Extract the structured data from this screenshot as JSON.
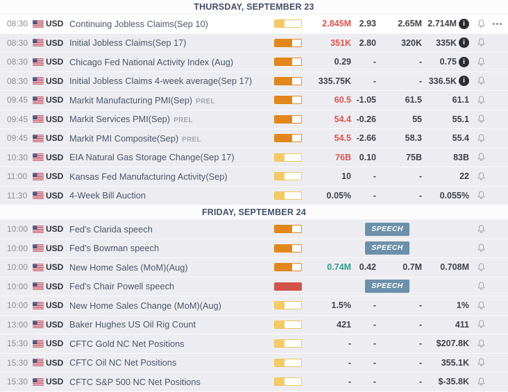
{
  "colors": {
    "actual_red": "#d9544d",
    "actual_green": "#35998e",
    "value_default": "#3f404a",
    "speech_badge_bg": "#6b90a9",
    "row_bg": "#ededf1",
    "highlight_row_bg": "#ffffff"
  },
  "volatility_levels": {
    "yellow": {
      "border": "#efc35e",
      "fill": "#f4ca67",
      "fill_pct": 36
    },
    "orange": {
      "border": "#df861c",
      "fill": "#e2871b",
      "fill_pct": 66
    },
    "red": {
      "border": "#cf5348",
      "fill": "#cf5348",
      "fill_pct": 100
    }
  },
  "badges": {
    "speech": "SPEECH"
  },
  "icons": {
    "info": "info-circle-icon",
    "bell": "alert-bell-icon",
    "menu": "ellipsis-menu-icon",
    "flag": "us-flag-icon"
  },
  "sections": [
    {
      "title": "THURSDAY, SEPTEMBER 23",
      "rows": [
        {
          "time": "08:30",
          "currency": "USD",
          "event": "Continuing Jobless Claims(Sep 10)",
          "suffix": "",
          "volatility": "yellow",
          "speech": false,
          "actual": "2.845M",
          "actual_color": "red",
          "deviation": "2.93",
          "consensus": "2.65M",
          "previous": "2.714M",
          "has_info": true,
          "has_menu": true,
          "highlighted": true
        },
        {
          "time": "08:30",
          "currency": "USD",
          "event": "Initial Jobless Claims(Sep 17)",
          "suffix": "",
          "volatility": "orange",
          "speech": false,
          "actual": "351K",
          "actual_color": "red",
          "deviation": "2.80",
          "consensus": "320K",
          "previous": "335K",
          "has_info": true,
          "has_menu": false,
          "highlighted": false
        },
        {
          "time": "08:30",
          "currency": "USD",
          "event": "Chicago Fed National Activity Index (Aug)",
          "suffix": "",
          "volatility": "orange",
          "speech": false,
          "actual": "0.29",
          "actual_color": "",
          "deviation": "-",
          "consensus": "-",
          "previous": "0.75",
          "has_info": true,
          "has_menu": false,
          "highlighted": false
        },
        {
          "time": "08:30",
          "currency": "USD",
          "event": "Initial Jobless Claims 4-week average(Sep 17)",
          "suffix": "",
          "volatility": "orange",
          "speech": false,
          "actual": "335.75K",
          "actual_color": "",
          "deviation": "-",
          "consensus": "-",
          "previous": "336.5K",
          "has_info": true,
          "has_menu": false,
          "highlighted": false
        },
        {
          "time": "09:45",
          "currency": "USD",
          "event": "Markit Manufacturing PMI(Sep)",
          "suffix": "PREL",
          "volatility": "orange",
          "speech": false,
          "actual": "60.5",
          "actual_color": "red",
          "deviation": "-1.05",
          "consensus": "61.5",
          "previous": "61.1",
          "has_info": false,
          "has_menu": false,
          "highlighted": false
        },
        {
          "time": "09:45",
          "currency": "USD",
          "event": "Markit Services PMI(Sep)",
          "suffix": "PREL",
          "volatility": "orange",
          "speech": false,
          "actual": "54.4",
          "actual_color": "red",
          "deviation": "-0.26",
          "consensus": "55",
          "previous": "55.1",
          "has_info": false,
          "has_menu": false,
          "highlighted": false
        },
        {
          "time": "09:45",
          "currency": "USD",
          "event": "Markit PMI Composite(Sep)",
          "suffix": "PREL",
          "volatility": "orange",
          "speech": false,
          "actual": "54.5",
          "actual_color": "red",
          "deviation": "-2.66",
          "consensus": "58.3",
          "previous": "55.4",
          "has_info": false,
          "has_menu": false,
          "highlighted": false
        },
        {
          "time": "10:30",
          "currency": "USD",
          "event": "EIA Natural Gas Storage Change(Sep 17)",
          "suffix": "",
          "volatility": "yellow",
          "speech": false,
          "actual": "76B",
          "actual_color": "red",
          "deviation": "0.10",
          "consensus": "75B",
          "previous": "83B",
          "has_info": false,
          "has_menu": false,
          "highlighted": false
        },
        {
          "time": "11:00",
          "currency": "USD",
          "event": "Kansas Fed Manufacturing Activity(Sep)",
          "suffix": "",
          "volatility": "yellow",
          "speech": false,
          "actual": "10",
          "actual_color": "",
          "deviation": "-",
          "consensus": "-",
          "previous": "22",
          "has_info": false,
          "has_menu": false,
          "highlighted": false
        },
        {
          "time": "11:30",
          "currency": "USD",
          "event": "4-Week Bill Auction",
          "suffix": "",
          "volatility": "yellow",
          "speech": false,
          "actual": "0.05%",
          "actual_color": "",
          "deviation": "-",
          "consensus": "-",
          "previous": "0.055%",
          "has_info": false,
          "has_menu": false,
          "highlighted": false
        }
      ]
    },
    {
      "title": "FRIDAY, SEPTEMBER 24",
      "rows": [
        {
          "time": "10:00",
          "currency": "USD",
          "event": "Fed's Clarida speech",
          "suffix": "",
          "volatility": "orange",
          "speech": true,
          "actual": "",
          "actual_color": "",
          "deviation": "",
          "consensus": "",
          "previous": "",
          "has_info": false,
          "has_menu": false,
          "highlighted": false
        },
        {
          "time": "10:00",
          "currency": "USD",
          "event": "Fed's Bowman speech",
          "suffix": "",
          "volatility": "orange",
          "speech": true,
          "actual": "",
          "actual_color": "",
          "deviation": "",
          "consensus": "",
          "previous": "",
          "has_info": false,
          "has_menu": false,
          "highlighted": false
        },
        {
          "time": "10:00",
          "currency": "USD",
          "event": "New Home Sales (MoM)(Aug)",
          "suffix": "",
          "volatility": "orange",
          "speech": false,
          "actual": "0.74M",
          "actual_color": "green",
          "deviation": "0.42",
          "consensus": "0.7M",
          "previous": "0.708M",
          "has_info": false,
          "has_menu": false,
          "highlighted": false
        },
        {
          "time": "10:00",
          "currency": "USD",
          "event": "Fed's Chair Powell speech",
          "suffix": "",
          "volatility": "red",
          "speech": true,
          "actual": "",
          "actual_color": "",
          "deviation": "",
          "consensus": "",
          "previous": "",
          "has_info": false,
          "has_menu": false,
          "highlighted": false
        },
        {
          "time": "10:00",
          "currency": "USD",
          "event": "New Home Sales Change (MoM)(Aug)",
          "suffix": "",
          "volatility": "yellow",
          "speech": false,
          "actual": "1.5%",
          "actual_color": "",
          "deviation": "-",
          "consensus": "-",
          "previous": "1%",
          "has_info": false,
          "has_menu": false,
          "highlighted": false
        },
        {
          "time": "13:00",
          "currency": "USD",
          "event": "Baker Hughes US Oil Rig Count",
          "suffix": "",
          "volatility": "yellow",
          "speech": false,
          "actual": "421",
          "actual_color": "",
          "deviation": "-",
          "consensus": "-",
          "previous": "411",
          "has_info": false,
          "has_menu": false,
          "highlighted": false
        },
        {
          "time": "15:30",
          "currency": "USD",
          "event": "CFTC Gold NC Net Positions",
          "suffix": "",
          "volatility": "yellow",
          "speech": false,
          "actual": "-",
          "actual_color": "",
          "deviation": "-",
          "consensus": "-",
          "previous": "$207.8K",
          "has_info": false,
          "has_menu": false,
          "highlighted": false
        },
        {
          "time": "15:30",
          "currency": "USD",
          "event": "CFTC Oil NC Net Positions",
          "suffix": "",
          "volatility": "yellow",
          "speech": false,
          "actual": "-",
          "actual_color": "",
          "deviation": "-",
          "consensus": "-",
          "previous": "355.1K",
          "has_info": false,
          "has_menu": false,
          "highlighted": false
        },
        {
          "time": "15:30",
          "currency": "USD",
          "event": "CFTC S&P 500 NC Net Positions",
          "suffix": "",
          "volatility": "yellow",
          "speech": false,
          "actual": "-",
          "actual_color": "",
          "deviation": "-",
          "consensus": "-",
          "previous": "$-35.8K",
          "has_info": false,
          "has_menu": false,
          "highlighted": false
        }
      ]
    }
  ]
}
